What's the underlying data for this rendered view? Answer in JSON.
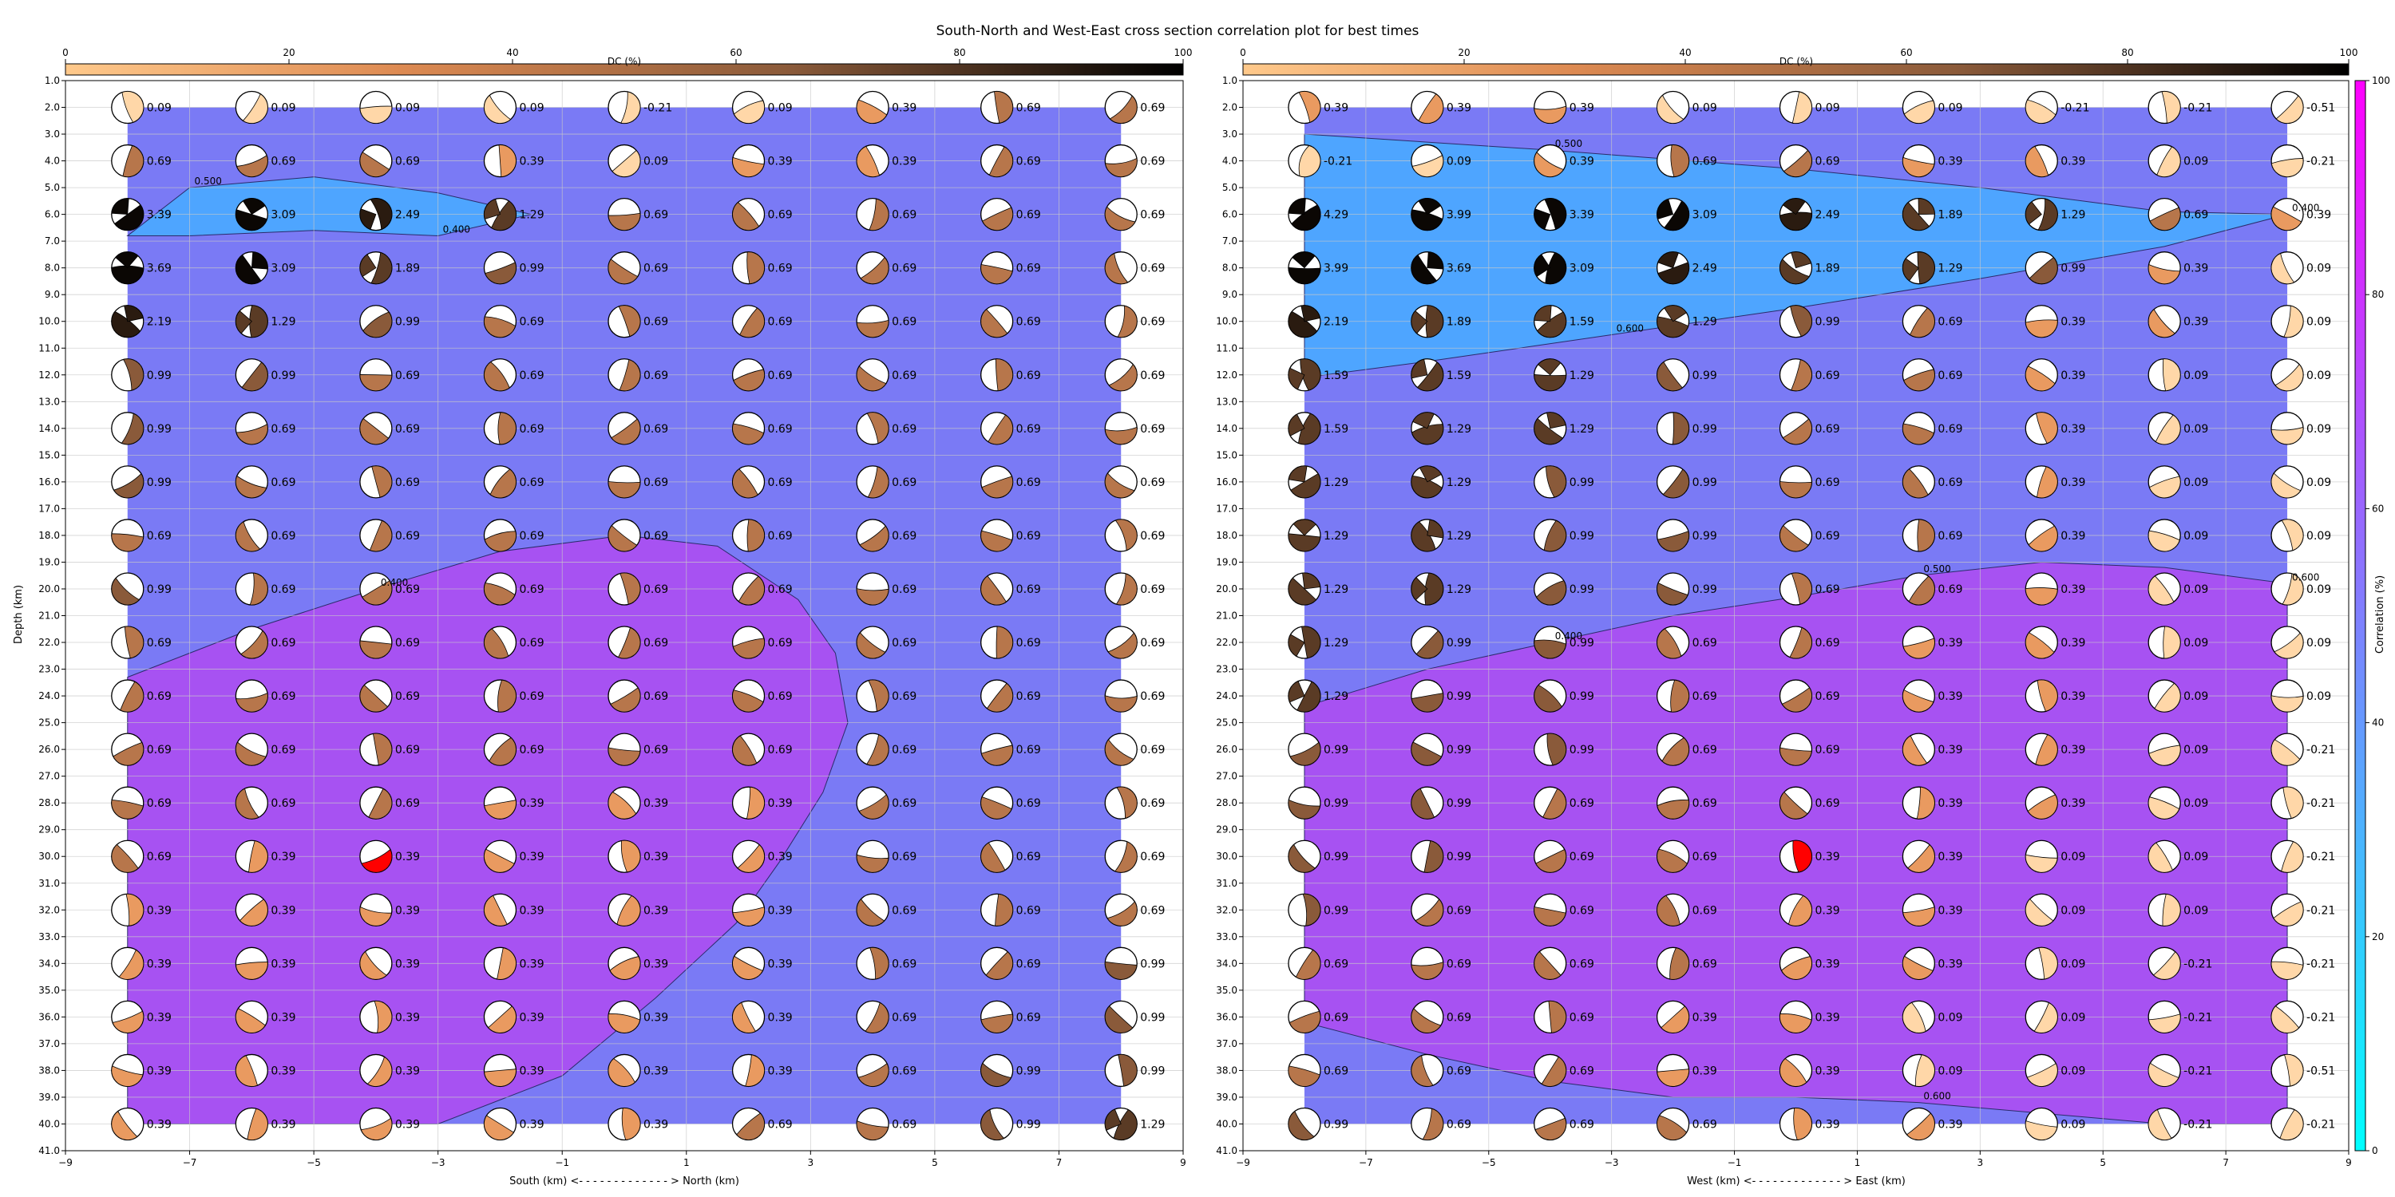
{
  "figure": {
    "title": "South-North and West-East cross section correlation plot for best times",
    "colors": {
      "zone_low": "#4ea5ff",
      "zone_mid": "#7a7af5",
      "zone_high": "#a752f2",
      "best_fill": "#ff0000",
      "grid": "#c8c8c8"
    }
  },
  "dc_colorbar": {
    "label": "DC (%)",
    "ticks": [
      "0",
      "20",
      "40",
      "60",
      "80",
      "100"
    ],
    "range": [
      0,
      100
    ],
    "colors": [
      "#ffc98b",
      "#dd8a52",
      "#8a5a3a",
      "#000000"
    ]
  },
  "correlation_colorbar": {
    "label": "Correlation (%)",
    "ticks": [
      "0",
      "20",
      "40",
      "60",
      "80",
      "100"
    ],
    "range": [
      0,
      100
    ],
    "colors": [
      "#00ffff",
      "#ff00ff"
    ]
  },
  "chart_data": [
    {
      "type": "heatmap",
      "panel": "south-north",
      "xlabel": "South (km) <- - - - - - - - - - - - - > North (km)",
      "ylabel": "Depth (km)",
      "xlim": [
        -9,
        9
      ],
      "ylim": [
        41,
        1
      ],
      "x_ticks": [
        "−9",
        "−7",
        "−5",
        "−3",
        "−1",
        "1",
        "3",
        "5",
        "7",
        "9"
      ],
      "y_ticks": [
        "1.0",
        "2.0",
        "3.0",
        "4.0",
        "5.0",
        "6.0",
        "7.0",
        "8.0",
        "9.0",
        "10.0",
        "11.0",
        "12.0",
        "13.0",
        "14.0",
        "15.0",
        "16.0",
        "17.0",
        "18.0",
        "19.0",
        "20.0",
        "21.0",
        "22.0",
        "23.0",
        "24.0",
        "25.0",
        "26.0",
        "27.0",
        "28.0",
        "29.0",
        "30.0",
        "31.0",
        "32.0",
        "33.0",
        "34.0",
        "35.0",
        "36.0",
        "37.0",
        "38.0",
        "39.0",
        "40.0",
        "41.0"
      ],
      "x": [
        -8,
        -6,
        -4,
        -2,
        0,
        2,
        4,
        6,
        8
      ],
      "depths": [
        2,
        4,
        6,
        8,
        10,
        12,
        14,
        16,
        18,
        20,
        22,
        24,
        26,
        28,
        30,
        32,
        34,
        36,
        38,
        40
      ],
      "labels": [
        [
          "0.09",
          "0.09",
          "0.09",
          "0.09",
          "-0.21",
          "0.09",
          "0.39",
          "0.69",
          "0.69"
        ],
        [
          "0.69",
          "0.69",
          "0.69",
          "0.39",
          "0.09",
          "0.39",
          "0.39",
          "0.69",
          "0.69"
        ],
        [
          "3.39",
          "3.09",
          "2.49",
          "1.29",
          "0.69",
          "0.69",
          "0.69",
          "0.69",
          "0.69"
        ],
        [
          "3.69",
          "3.09",
          "1.89",
          "0.99",
          "0.69",
          "0.69",
          "0.69",
          "0.69",
          "0.69"
        ],
        [
          "2.19",
          "1.29",
          "0.99",
          "0.69",
          "0.69",
          "0.69",
          "0.69",
          "0.69",
          "0.69"
        ],
        [
          "0.99",
          "0.99",
          "0.69",
          "0.69",
          "0.69",
          "0.69",
          "0.69",
          "0.69",
          "0.69"
        ],
        [
          "0.99",
          "0.69",
          "0.69",
          "0.69",
          "0.69",
          "0.69",
          "0.69",
          "0.69",
          "0.69"
        ],
        [
          "0.99",
          "0.69",
          "0.69",
          "0.69",
          "0.69",
          "0.69",
          "0.69",
          "0.69",
          "0.69"
        ],
        [
          "0.69",
          "0.69",
          "0.69",
          "0.69",
          "0.69",
          "0.69",
          "0.69",
          "0.69",
          "0.69"
        ],
        [
          "0.99",
          "0.69",
          "0.69",
          "0.69",
          "0.69",
          "0.69",
          "0.69",
          "0.69",
          "0.69"
        ],
        [
          "0.69",
          "0.69",
          "0.69",
          "0.69",
          "0.69",
          "0.69",
          "0.69",
          "0.69",
          "0.69"
        ],
        [
          "0.69",
          "0.69",
          "0.69",
          "0.69",
          "0.69",
          "0.69",
          "0.69",
          "0.69",
          "0.69"
        ],
        [
          "0.69",
          "0.69",
          "0.69",
          "0.69",
          "0.69",
          "0.69",
          "0.69",
          "0.69",
          "0.69"
        ],
        [
          "0.69",
          "0.69",
          "0.69",
          "0.39",
          "0.39",
          "0.39",
          "0.69",
          "0.69",
          "0.69"
        ],
        [
          "0.69",
          "0.39",
          "0.39",
          "0.39",
          "0.39",
          "0.39",
          "0.69",
          "0.69",
          "0.69"
        ],
        [
          "0.39",
          "0.39",
          "0.39",
          "0.39",
          "0.39",
          "0.39",
          "0.69",
          "0.69",
          "0.69"
        ],
        [
          "0.39",
          "0.39",
          "0.39",
          "0.39",
          "0.39",
          "0.39",
          "0.69",
          "0.69",
          "0.99"
        ],
        [
          "0.39",
          "0.39",
          "0.39",
          "0.39",
          "0.39",
          "0.39",
          "0.69",
          "0.69",
          "0.99"
        ],
        [
          "0.39",
          "0.39",
          "0.39",
          "0.39",
          "0.39",
          "0.39",
          "0.69",
          "0.99",
          "0.99"
        ],
        [
          "0.39",
          "0.39",
          "0.39",
          "0.39",
          "0.39",
          "0.69",
          "0.69",
          "0.99",
          "1.29"
        ]
      ],
      "best": {
        "x": -4,
        "depth": 30
      },
      "contour_labels": [
        "0.500",
        "0.400",
        "0.400"
      ],
      "zones": {
        "low": [
          [
            -8,
            6.8
          ],
          [
            -7,
            5.0
          ],
          [
            -5,
            4.6
          ],
          [
            -3,
            5.2
          ],
          [
            -1.5,
            6.0
          ],
          [
            -3,
            6.8
          ],
          [
            -5,
            6.6
          ],
          [
            -7,
            6.8
          ]
        ],
        "high": [
          [
            -8,
            23.3
          ],
          [
            -6,
            21.5
          ],
          [
            -4,
            20.0
          ],
          [
            -2,
            18.6
          ],
          [
            0,
            18.0
          ],
          [
            1.5,
            18.4
          ],
          [
            2.8,
            20.4
          ],
          [
            3.4,
            22.4
          ],
          [
            3.6,
            25.0
          ],
          [
            3.2,
            27.6
          ],
          [
            2.5,
            30.2
          ],
          [
            1.8,
            32.5
          ],
          [
            0.5,
            35.3
          ],
          [
            -1,
            38.2
          ],
          [
            -3,
            40.0
          ],
          [
            -8,
            40.0
          ]
        ]
      }
    },
    {
      "type": "heatmap",
      "panel": "west-east",
      "xlabel": "West (km) <- - - - - - - - - - - - - > East (km)",
      "ylabel": "",
      "xlim": [
        -9,
        9
      ],
      "ylim": [
        41,
        1
      ],
      "x_ticks": [
        "−9",
        "−7",
        "−5",
        "−3",
        "−1",
        "1",
        "3",
        "5",
        "7",
        "9"
      ],
      "y_ticks": [
        "1.0",
        "2.0",
        "3.0",
        "4.0",
        "5.0",
        "6.0",
        "7.0",
        "8.0",
        "9.0",
        "10.0",
        "11.0",
        "12.0",
        "13.0",
        "14.0",
        "15.0",
        "16.0",
        "17.0",
        "18.0",
        "19.0",
        "20.0",
        "21.0",
        "22.0",
        "23.0",
        "24.0",
        "25.0",
        "26.0",
        "27.0",
        "28.0",
        "29.0",
        "30.0",
        "31.0",
        "32.0",
        "33.0",
        "34.0",
        "35.0",
        "36.0",
        "37.0",
        "38.0",
        "39.0",
        "40.0",
        "41.0"
      ],
      "x": [
        -8,
        -6,
        -4,
        -2,
        0,
        2,
        4,
        6,
        8
      ],
      "depths": [
        2,
        4,
        6,
        8,
        10,
        12,
        14,
        16,
        18,
        20,
        22,
        24,
        26,
        28,
        30,
        32,
        34,
        36,
        38,
        40
      ],
      "labels": [
        [
          "0.39",
          "0.39",
          "0.39",
          "0.09",
          "0.09",
          "0.09",
          "-0.21",
          "-0.21",
          "-0.51"
        ],
        [
          "-0.21",
          "0.09",
          "0.39",
          "0.69",
          "0.69",
          "0.39",
          "0.39",
          "0.09",
          "-0.21"
        ],
        [
          "4.29",
          "3.99",
          "3.39",
          "3.09",
          "2.49",
          "1.89",
          "1.29",
          "0.69",
          "0.39"
        ],
        [
          "3.99",
          "3.69",
          "3.09",
          "2.49",
          "1.89",
          "1.29",
          "0.99",
          "0.39",
          "0.09"
        ],
        [
          "2.19",
          "1.89",
          "1.59",
          "1.29",
          "0.99",
          "0.69",
          "0.39",
          "0.39",
          "0.09"
        ],
        [
          "1.59",
          "1.59",
          "1.29",
          "0.99",
          "0.69",
          "0.69",
          "0.39",
          "0.09",
          "0.09"
        ],
        [
          "1.59",
          "1.29",
          "1.29",
          "0.99",
          "0.69",
          "0.69",
          "0.39",
          "0.09",
          "0.09"
        ],
        [
          "1.29",
          "1.29",
          "0.99",
          "0.99",
          "0.69",
          "0.69",
          "0.39",
          "0.09",
          "0.09"
        ],
        [
          "1.29",
          "1.29",
          "0.99",
          "0.99",
          "0.69",
          "0.69",
          "0.39",
          "0.09",
          "0.09"
        ],
        [
          "1.29",
          "1.29",
          "0.99",
          "0.99",
          "0.69",
          "0.69",
          "0.39",
          "0.09",
          "0.09"
        ],
        [
          "1.29",
          "0.99",
          "0.99",
          "0.69",
          "0.69",
          "0.39",
          "0.39",
          "0.09",
          "0.09"
        ],
        [
          "1.29",
          "0.99",
          "0.99",
          "0.69",
          "0.69",
          "0.39",
          "0.39",
          "0.09",
          "0.09"
        ],
        [
          "0.99",
          "0.99",
          "0.99",
          "0.69",
          "0.69",
          "0.39",
          "0.39",
          "0.09",
          "-0.21"
        ],
        [
          "0.99",
          "0.99",
          "0.69",
          "0.69",
          "0.69",
          "0.39",
          "0.39",
          "0.09",
          "-0.21"
        ],
        [
          "0.99",
          "0.99",
          "0.69",
          "0.69",
          "0.39",
          "0.39",
          "0.09",
          "0.09",
          "-0.21"
        ],
        [
          "0.99",
          "0.69",
          "0.69",
          "0.69",
          "0.39",
          "0.39",
          "0.09",
          "0.09",
          "-0.21"
        ],
        [
          "0.69",
          "0.69",
          "0.69",
          "0.69",
          "0.39",
          "0.39",
          "0.09",
          "-0.21",
          "-0.21"
        ],
        [
          "0.69",
          "0.69",
          "0.69",
          "0.39",
          "0.39",
          "0.09",
          "0.09",
          "-0.21",
          "-0.21"
        ],
        [
          "0.69",
          "0.69",
          "0.69",
          "0.39",
          "0.39",
          "0.09",
          "0.09",
          "-0.21",
          "-0.51"
        ],
        [
          "0.99",
          "0.69",
          "0.69",
          "0.69",
          "0.39",
          "0.39",
          "0.09",
          "-0.21",
          "-0.21"
        ]
      ],
      "best": {
        "x": 0,
        "depth": 30
      },
      "contour_labels": [
        "0.500",
        "0.400",
        "0.400",
        "0.500",
        "0.600",
        "0.600",
        "0.600"
      ],
      "zones": {
        "low": [
          [
            -8,
            3.0
          ],
          [
            -4,
            3.6
          ],
          [
            0,
            4.3
          ],
          [
            3,
            5.0
          ],
          [
            6,
            5.9
          ],
          [
            8,
            6.0
          ],
          [
            6,
            7.2
          ],
          [
            3,
            8.4
          ],
          [
            0,
            9.5
          ],
          [
            -3,
            10.5
          ],
          [
            -6,
            11.5
          ],
          [
            -8,
            12.1
          ]
        ],
        "high": [
          [
            -8,
            24.4
          ],
          [
            -6,
            23.0
          ],
          [
            -4,
            22.0
          ],
          [
            -2,
            21.0
          ],
          [
            0,
            20.3
          ],
          [
            2,
            19.5
          ],
          [
            4,
            19.0
          ],
          [
            6,
            19.2
          ],
          [
            8,
            19.8
          ],
          [
            8,
            40.0
          ],
          [
            6,
            40.0
          ],
          [
            4,
            39.6
          ],
          [
            2,
            39.2
          ],
          [
            0,
            39.0
          ],
          [
            -2,
            39.0
          ],
          [
            -4,
            38.4
          ],
          [
            -6,
            37.4
          ],
          [
            -8,
            36.2
          ]
        ]
      }
    }
  ]
}
